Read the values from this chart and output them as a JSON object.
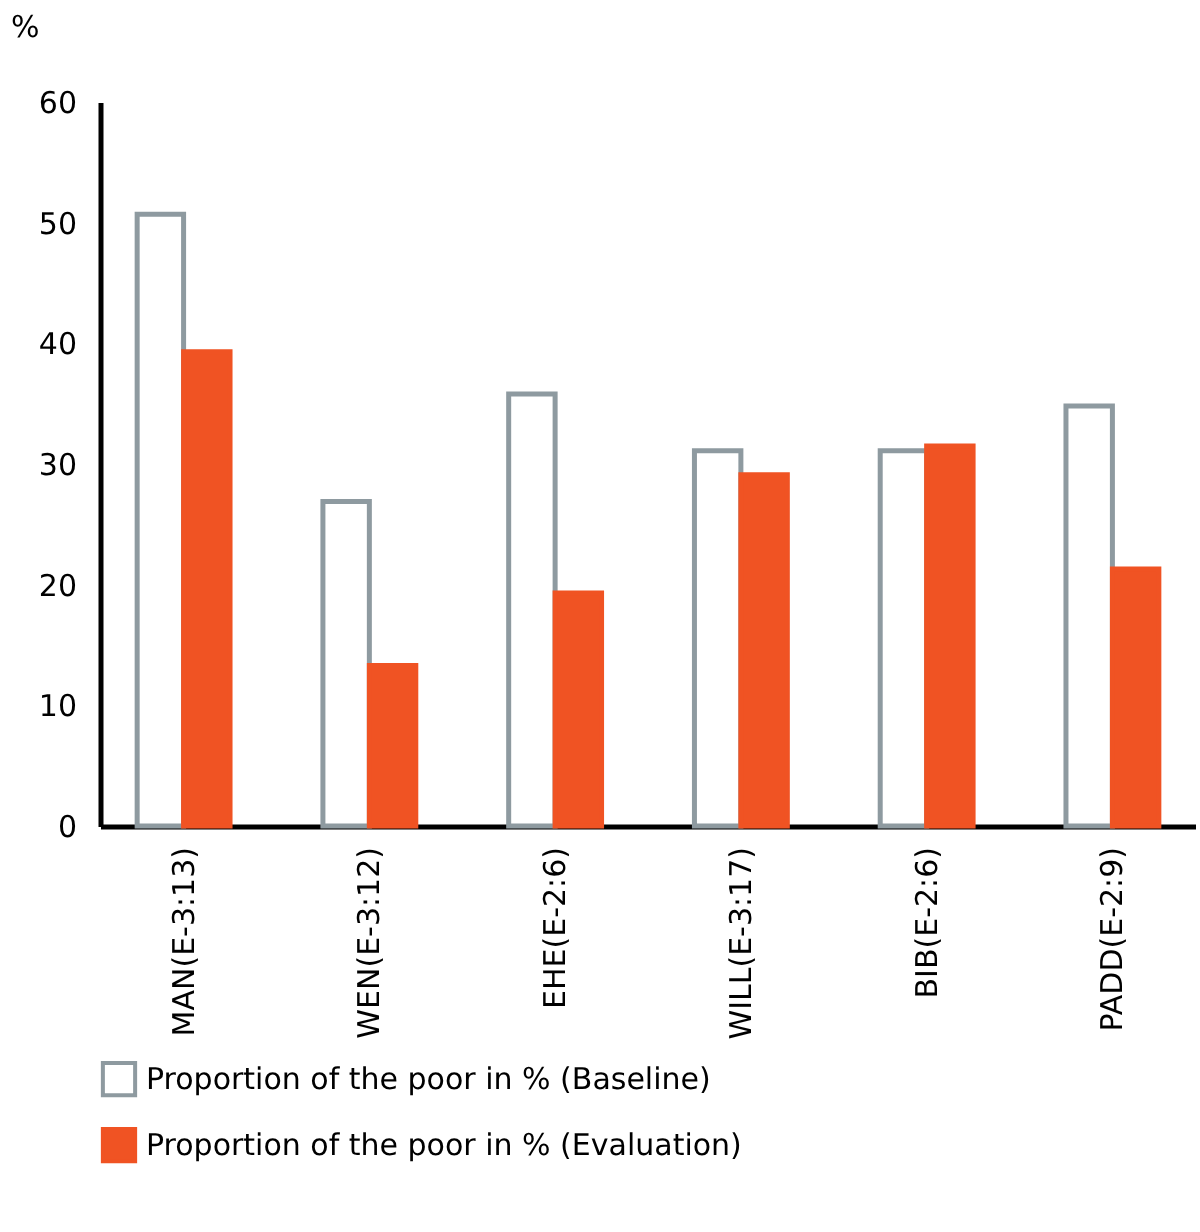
{
  "chart_data": {
    "type": "bar",
    "ylabel": "%",
    "categories": [
      "MAN(E-3:13)",
      "WEN(E-3:12)",
      "EHE(E-2:6)",
      "WILL(E-3:17)",
      "BIB(E-2:6)",
      "PADD(E-2:9)"
    ],
    "series": [
      {
        "name": "Proportion of the poor in % (Baseline)",
        "color": "#ffffff",
        "values": [
          50.7,
          26.9,
          35.8,
          31.1,
          31.1,
          34.8
        ]
      },
      {
        "name": "Proportion of the poor in % (Evaluation)",
        "color": "#f05323",
        "values": [
          39.3,
          13.3,
          19.3,
          29.1,
          31.5,
          21.3
        ]
      }
    ],
    "ylim": [
      0,
      60
    ],
    "yticks": [
      0,
      10,
      20,
      30,
      40,
      50,
      60
    ],
    "grid": false,
    "legend": "bottom"
  }
}
